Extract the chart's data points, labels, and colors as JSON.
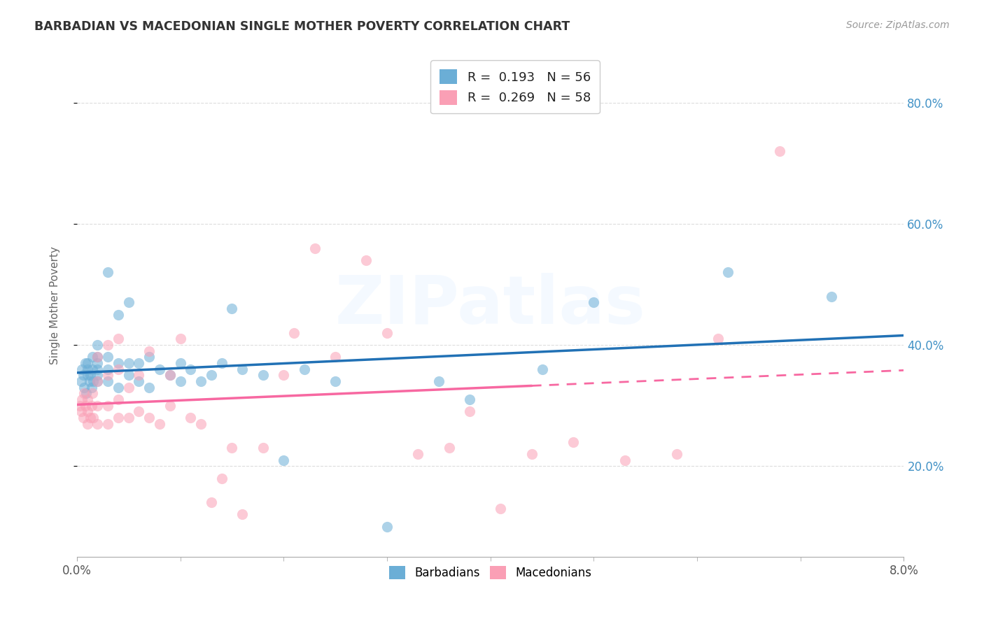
{
  "title": "BARBADIAN VS MACEDONIAN SINGLE MOTHER POVERTY CORRELATION CHART",
  "source": "Source: ZipAtlas.com",
  "ylabel_label": "Single Mother Poverty",
  "xlim": [
    0.0,
    0.08
  ],
  "ylim": [
    0.05,
    0.88
  ],
  "barbadian_color": "#6baed6",
  "macedonian_color": "#fa9fb5",
  "barbadian_line_color": "#2171b5",
  "macedonian_line_color": "#f768a1",
  "barbadian_R": 0.193,
  "barbadian_N": 56,
  "macedonian_R": 0.269,
  "macedonian_N": 58,
  "watermark_text": "ZIPatlas",
  "barbadian_x": [
    0.0004,
    0.0005,
    0.0006,
    0.0007,
    0.0008,
    0.0009,
    0.001,
    0.001,
    0.001,
    0.0012,
    0.0013,
    0.0014,
    0.0015,
    0.0015,
    0.0016,
    0.002,
    0.002,
    0.002,
    0.002,
    0.002,
    0.002,
    0.003,
    0.003,
    0.003,
    0.003,
    0.004,
    0.004,
    0.004,
    0.005,
    0.005,
    0.005,
    0.006,
    0.006,
    0.007,
    0.007,
    0.008,
    0.009,
    0.01,
    0.01,
    0.011,
    0.012,
    0.013,
    0.014,
    0.015,
    0.016,
    0.018,
    0.02,
    0.022,
    0.025,
    0.03,
    0.035,
    0.038,
    0.045,
    0.05,
    0.063,
    0.073
  ],
  "barbadian_y": [
    0.34,
    0.36,
    0.35,
    0.33,
    0.37,
    0.32,
    0.35,
    0.36,
    0.37,
    0.34,
    0.35,
    0.33,
    0.36,
    0.38,
    0.34,
    0.34,
    0.35,
    0.36,
    0.37,
    0.38,
    0.4,
    0.34,
    0.36,
    0.38,
    0.52,
    0.33,
    0.37,
    0.45,
    0.35,
    0.37,
    0.47,
    0.34,
    0.37,
    0.33,
    0.38,
    0.36,
    0.35,
    0.34,
    0.37,
    0.36,
    0.34,
    0.35,
    0.37,
    0.46,
    0.36,
    0.35,
    0.21,
    0.36,
    0.34,
    0.1,
    0.34,
    0.31,
    0.36,
    0.47,
    0.52,
    0.48
  ],
  "macedonian_x": [
    0.0003,
    0.0004,
    0.0005,
    0.0006,
    0.0007,
    0.0008,
    0.001,
    0.001,
    0.001,
    0.0013,
    0.0014,
    0.0015,
    0.0016,
    0.002,
    0.002,
    0.002,
    0.002,
    0.003,
    0.003,
    0.003,
    0.003,
    0.004,
    0.004,
    0.004,
    0.004,
    0.005,
    0.005,
    0.006,
    0.006,
    0.007,
    0.007,
    0.008,
    0.009,
    0.009,
    0.01,
    0.011,
    0.012,
    0.013,
    0.014,
    0.015,
    0.016,
    0.018,
    0.02,
    0.021,
    0.023,
    0.025,
    0.028,
    0.03,
    0.033,
    0.036,
    0.038,
    0.041,
    0.044,
    0.048,
    0.053,
    0.058,
    0.062,
    0.068
  ],
  "macedonian_y": [
    0.3,
    0.29,
    0.31,
    0.28,
    0.32,
    0.3,
    0.27,
    0.29,
    0.31,
    0.28,
    0.3,
    0.32,
    0.28,
    0.27,
    0.3,
    0.34,
    0.38,
    0.27,
    0.3,
    0.35,
    0.4,
    0.28,
    0.31,
    0.36,
    0.41,
    0.28,
    0.33,
    0.29,
    0.35,
    0.28,
    0.39,
    0.27,
    0.3,
    0.35,
    0.41,
    0.28,
    0.27,
    0.14,
    0.18,
    0.23,
    0.12,
    0.23,
    0.35,
    0.42,
    0.56,
    0.38,
    0.54,
    0.42,
    0.22,
    0.23,
    0.29,
    0.13,
    0.22,
    0.24,
    0.21,
    0.22,
    0.41,
    0.72
  ],
  "xtick_locs": [
    0.0,
    0.02,
    0.04,
    0.06,
    0.08
  ],
  "xtick_labels": [
    "0.0%",
    "",
    "",
    "",
    "8.0%"
  ],
  "ytick_locs": [
    0.2,
    0.4,
    0.6,
    0.8
  ],
  "ytick_labels": [
    "20.0%",
    "40.0%",
    "60.0%",
    "80.0%"
  ]
}
